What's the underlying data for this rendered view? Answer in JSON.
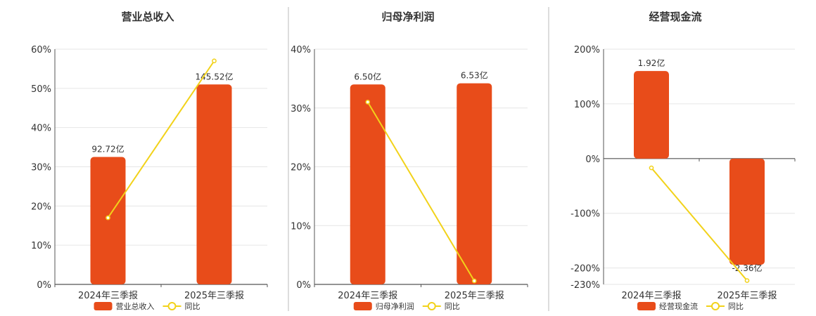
{
  "chart_data": [
    {
      "type": "bar",
      "title": "营业总收入",
      "categories": [
        "2024年三季报",
        "2025年三季报"
      ],
      "bar_labels": [
        "92.72亿",
        "145.52亿"
      ],
      "bar_values_pct": [
        32.5,
        51
      ],
      "line_values_pct": [
        17,
        57
      ],
      "ylim": [
        0,
        60
      ],
      "yticks": [
        0,
        10,
        20,
        30,
        40,
        50,
        60
      ],
      "ytick_labels": [
        "0%",
        "10%",
        "20%",
        "30%",
        "40%",
        "50%",
        "60%"
      ],
      "legend": {
        "bar": "营业总收入",
        "line": "同比"
      },
      "grid": true
    },
    {
      "type": "bar",
      "title": "归母净利润",
      "categories": [
        "2024年三季报",
        "2025年三季报"
      ],
      "bar_labels": [
        "6.50亿",
        "6.53亿"
      ],
      "bar_values_pct": [
        34,
        34.2
      ],
      "line_values_pct": [
        31,
        0.6
      ],
      "ylim": [
        0,
        40
      ],
      "yticks": [
        0,
        10,
        20,
        30,
        40
      ],
      "ytick_labels": [
        "0%",
        "10%",
        "20%",
        "30%",
        "40%"
      ],
      "legend": {
        "bar": "归母净利润",
        "line": "同比"
      },
      "grid": true
    },
    {
      "type": "bar",
      "title": "经营现金流",
      "categories": [
        "2024年三季报",
        "2025年三季报"
      ],
      "bar_labels": [
        "1.92亿",
        "-2.36亿"
      ],
      "bar_values_pct": [
        160,
        -194
      ],
      "line_values_pct": [
        -17,
        -223
      ],
      "ylim": [
        -230,
        200
      ],
      "yticks": [
        -230,
        -200,
        -100,
        0,
        100,
        200
      ],
      "ytick_labels": [
        "-230%",
        "-200%",
        "-100%",
        "0%",
        "100%",
        "200%"
      ],
      "legend": {
        "bar": "经营现金流",
        "line": "同比"
      },
      "grid": true
    }
  ],
  "colors": {
    "bar": "#e84c1a",
    "line": "#f2d21a",
    "grid": "#e6e6e6",
    "axis": "#555555",
    "divider": "#bbbbbb",
    "text": "#333333"
  }
}
